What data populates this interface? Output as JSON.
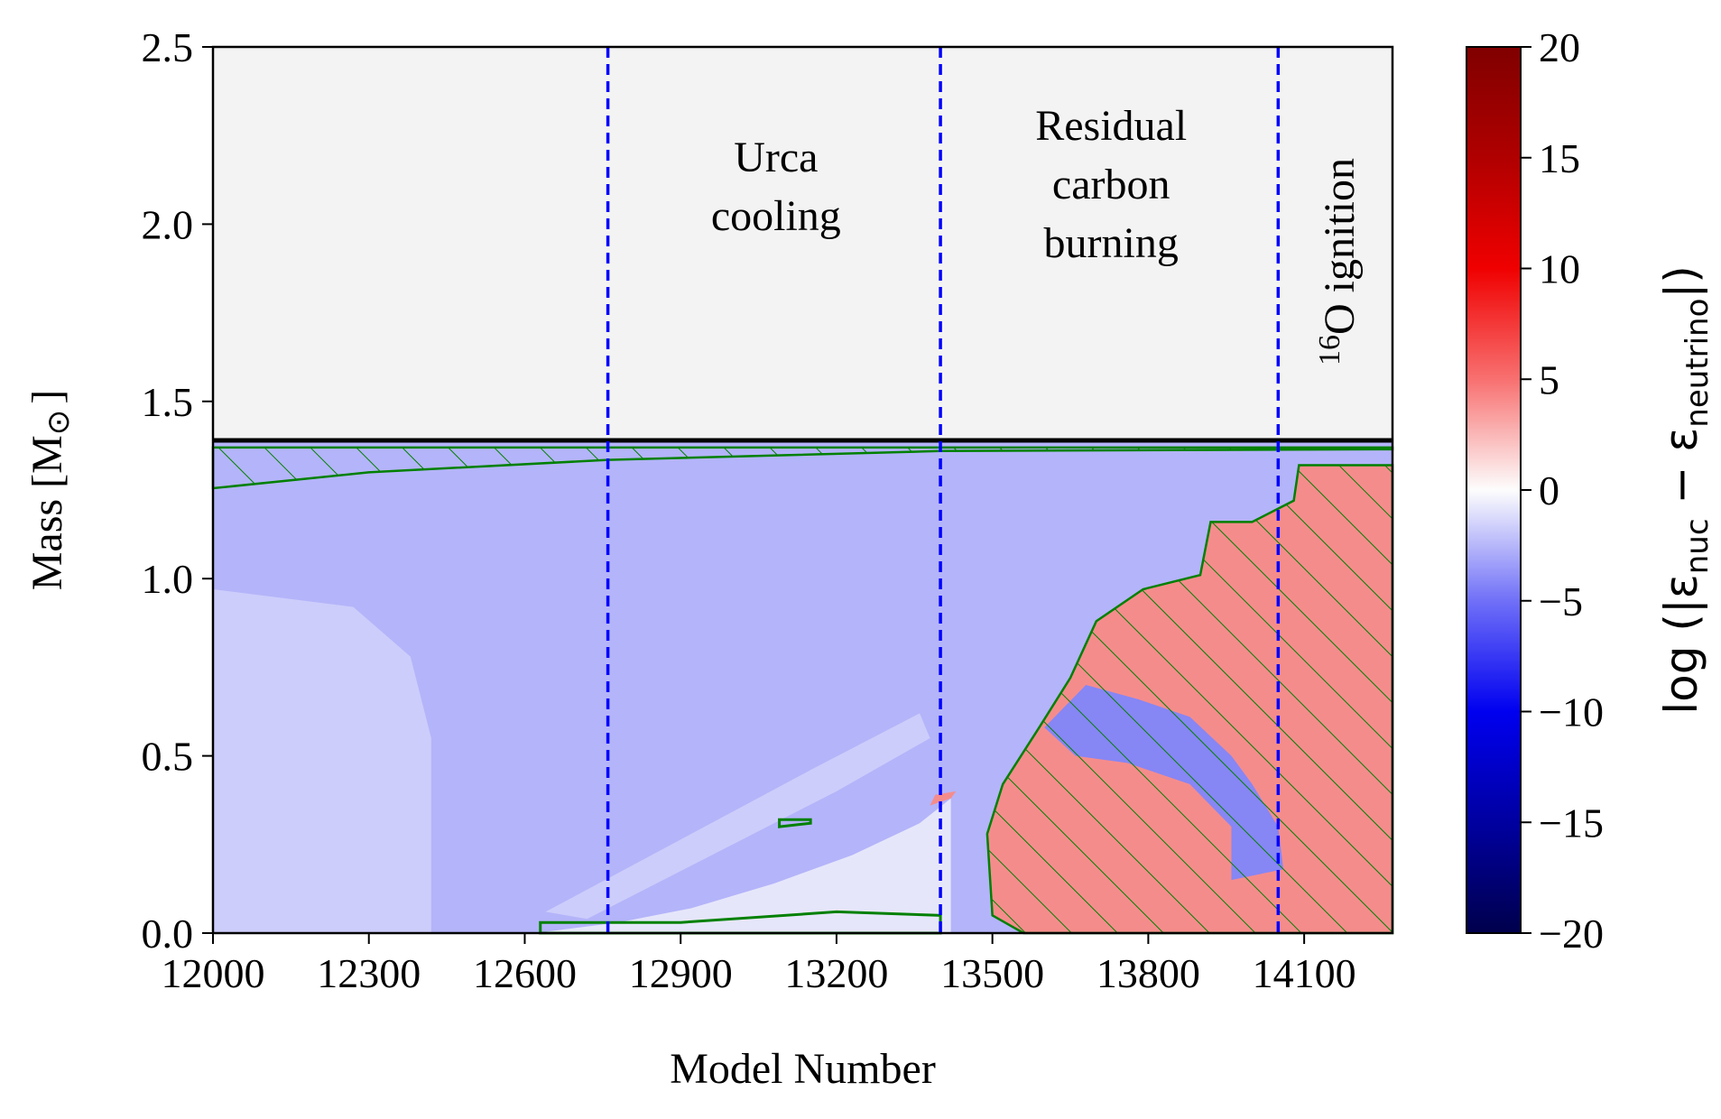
{
  "chart_data": {
    "type": "heatmap",
    "xlabel": "Model Number",
    "ylabel": "Mass [M",
    "ylabel_symbol": "⊙",
    "ylabel_close": "]",
    "xlim": [
      12000,
      14270
    ],
    "ylim": [
      0,
      2.5
    ],
    "x_ticks": [
      12000,
      12300,
      12600,
      12900,
      13200,
      13500,
      13800,
      14100
    ],
    "y_ticks": [
      0.0,
      0.5,
      1.0,
      1.5,
      2.0,
      2.5
    ],
    "y_tick_labels": [
      "0.0",
      "0.5",
      "1.0",
      "1.5",
      "2.0",
      "2.5"
    ],
    "colorbar": {
      "label_prefix": "log (|ε",
      "label_sub1": "nuc",
      "label_mid": " − ε",
      "label_sub2": "neutrino",
      "label_suffix": "|)",
      "range": [
        -20,
        20
      ],
      "ticks": [
        20,
        15,
        10,
        5,
        0,
        -5,
        -10,
        -15,
        -20
      ],
      "tick_labels": [
        "20",
        "15",
        "10",
        "5",
        "0",
        "−5",
        "−10",
        "−15",
        "−20"
      ],
      "colormap": "seismic"
    },
    "star_mass": 1.39,
    "phase_boundaries": [
      12760,
      13400,
      14050
    ],
    "phase_line_color": "#0000ff",
    "regions": [
      {
        "label_lines": [
          "Urca",
          "cooling"
        ]
      },
      {
        "label_lines": [
          "Residual",
          "carbon",
          "burning"
        ]
      },
      {
        "label_sup": "16",
        "label_main": "O ignition"
      }
    ],
    "colors": {
      "background_above_star": "#f3f3f3",
      "weak_cooling": "#cdcdfb",
      "moderate_cooling": "#b4b4fa",
      "strong_cooling": "#8686f5",
      "near_zero": "#e6e6fb",
      "heating": "#f58c8c",
      "convection_hatch": "#008000"
    }
  }
}
